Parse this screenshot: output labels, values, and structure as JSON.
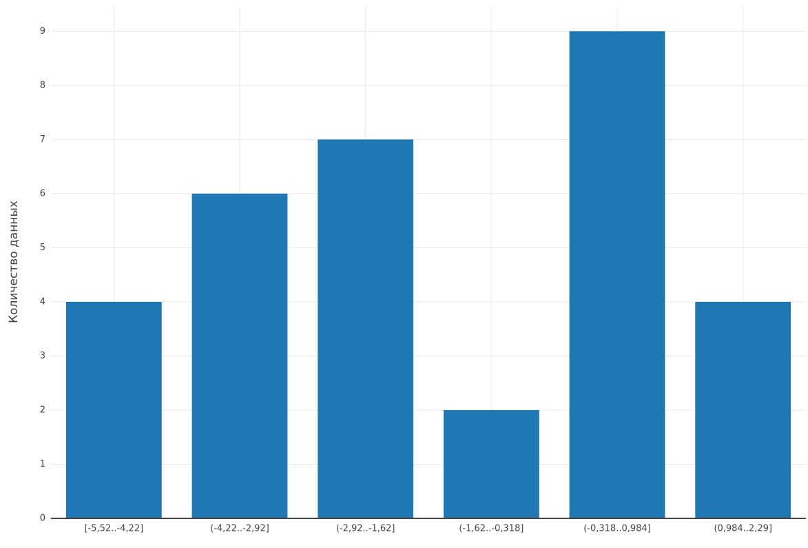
{
  "chart_data": {
    "type": "bar",
    "y_label": "Количество данных",
    "categories": [
      "[-5,52..-4,22]",
      "(-4,22..-2,92]",
      "(-2,92..-1,62]",
      "(-1,62..-0,318]",
      "(-0,318..0,984]",
      "(0,984..2,29]"
    ],
    "values": [
      4,
      6,
      7,
      2,
      9,
      4
    ],
    "color": "#1f77b4",
    "ylim": [
      0,
      9.45
    ],
    "yticks": [
      0,
      1,
      2,
      3,
      4,
      5,
      6,
      7,
      8,
      9
    ],
    "grid": true
  }
}
